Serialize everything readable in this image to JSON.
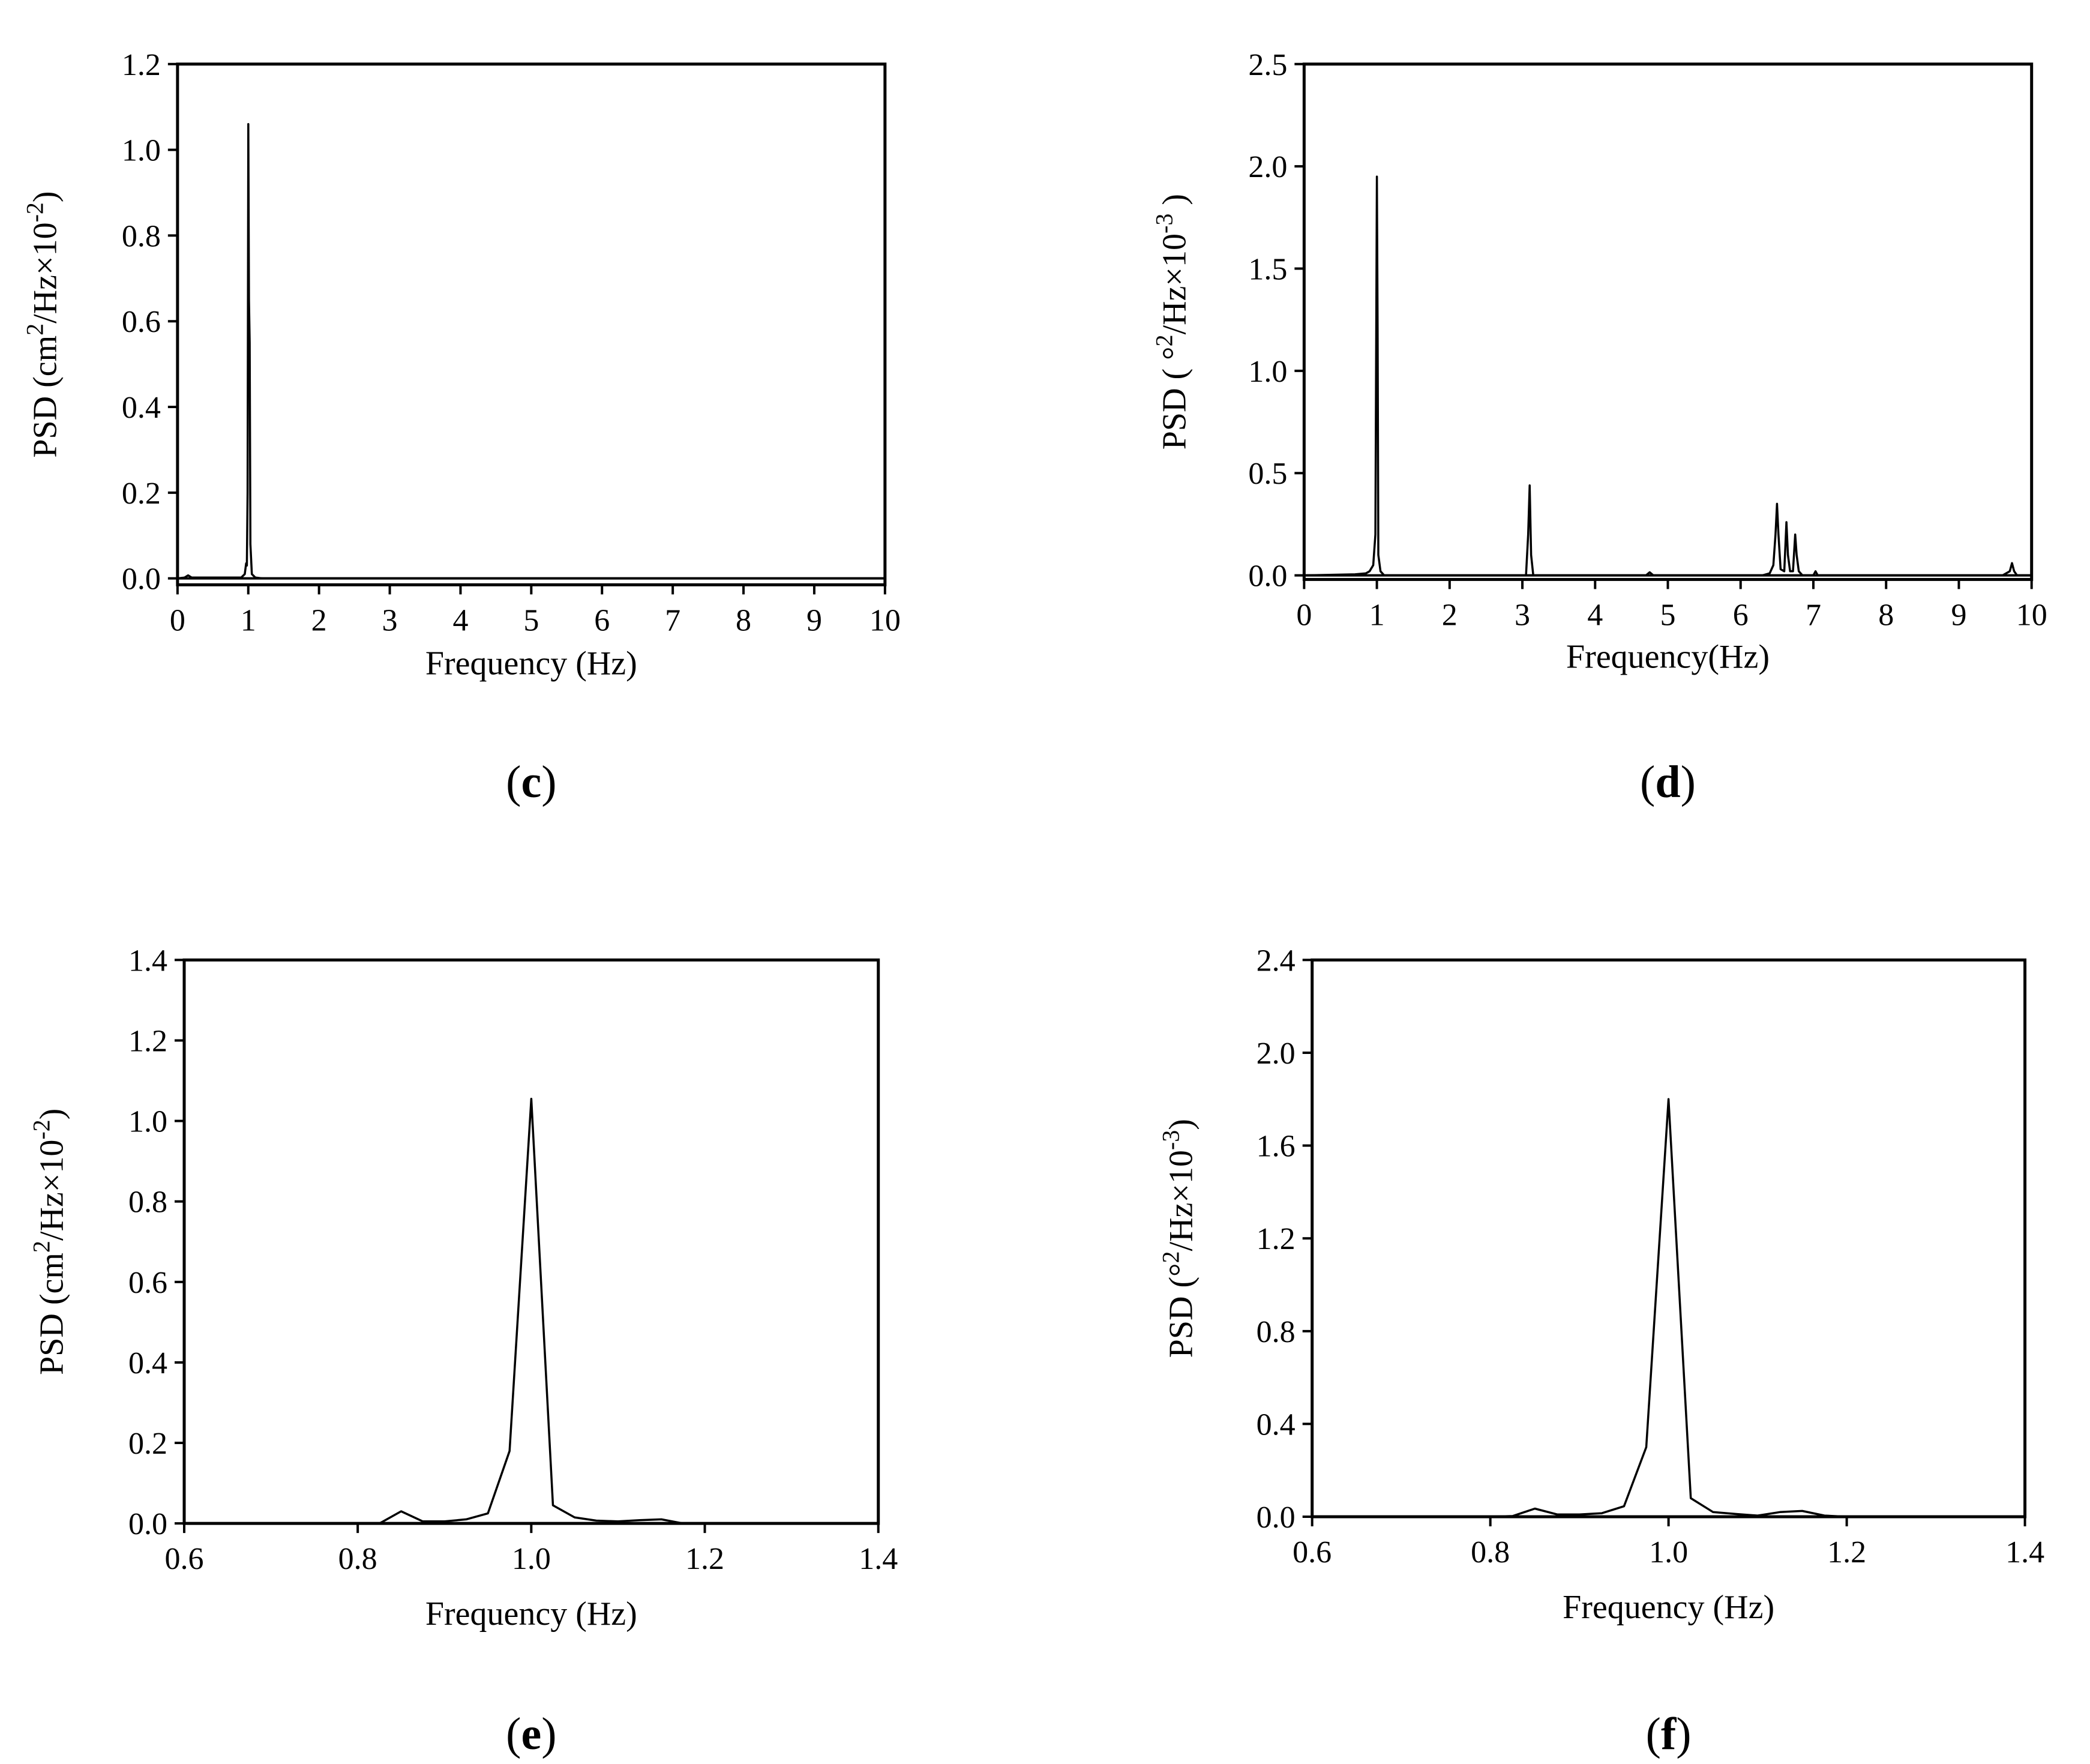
{
  "chart_data": [
    {
      "id": "c",
      "type": "line",
      "panel_label": "c",
      "xlabel": "Frequency (Hz)",
      "ylabel": {
        "pre": "PSD (cm",
        "sup1": "2",
        "mid": "/Hz×10",
        "sup2": "-2",
        "post": ")"
      },
      "xlim": [
        0,
        10
      ],
      "ylim": [
        -0.015,
        1.2
      ],
      "xticks": [
        0,
        1,
        2,
        3,
        4,
        5,
        6,
        7,
        8,
        9,
        10
      ],
      "xtick_labels": [
        "0",
        "1",
        "2",
        "3",
        "4",
        "5",
        "6",
        "7",
        "8",
        "9",
        "10"
      ],
      "yticks": [
        0.0,
        0.2,
        0.4,
        0.6,
        0.8,
        1.0,
        1.2
      ],
      "ytick_labels": [
        "0.0",
        "0.2",
        "0.4",
        "0.6",
        "0.8",
        "1.0",
        "1.2"
      ],
      "series": [
        {
          "x": [
            0.0,
            0.1,
            0.15,
            0.2,
            0.9,
            0.95,
            0.97,
            0.98,
            0.99,
            1.0,
            1.01,
            1.02,
            1.03,
            1.05,
            1.1,
            1.2,
            10.0
          ],
          "y": [
            0.0,
            0.002,
            0.007,
            0.002,
            0.002,
            0.01,
            0.035,
            0.03,
            0.2,
            1.06,
            0.65,
            0.55,
            0.08,
            0.01,
            0.002,
            0.0,
            0.0
          ]
        }
      ]
    },
    {
      "id": "d",
      "type": "line",
      "panel_label": "d",
      "xlabel": "Frequency(Hz)",
      "ylabel": {
        "pre": "PSD ( °",
        "sup1": "2",
        "mid": "/Hz×10",
        "sup2": "-3",
        "post": " )"
      },
      "xlim": [
        0,
        10
      ],
      "ylim": [
        -0.02,
        2.5
      ],
      "xticks": [
        0,
        1,
        2,
        3,
        4,
        5,
        6,
        7,
        8,
        9,
        10
      ],
      "xtick_labels": [
        "0",
        "1",
        "2",
        "3",
        "4",
        "5",
        "6",
        "7",
        "8",
        "9",
        "10"
      ],
      "yticks": [
        0.0,
        0.5,
        1.0,
        1.5,
        2.0,
        2.5
      ],
      "ytick_labels": [
        "0.0",
        "0.5",
        "1.0",
        "1.5",
        "2.0",
        "2.5"
      ],
      "series": [
        {
          "x": [
            0.0,
            0.7,
            0.85,
            0.9,
            0.95,
            0.98,
            1.0,
            1.01,
            1.02,
            1.05,
            1.1,
            3.05,
            3.08,
            3.1,
            3.12,
            3.15,
            4.7,
            4.75,
            4.8,
            6.3,
            6.4,
            6.45,
            6.48,
            6.5,
            6.52,
            6.55,
            6.6,
            6.63,
            6.65,
            6.68,
            6.72,
            6.75,
            6.77,
            6.8,
            6.85,
            7.0,
            7.03,
            7.06,
            9.6,
            9.7,
            9.73,
            9.76,
            9.8,
            10.0
          ],
          "y": [
            0.0,
            0.005,
            0.01,
            0.02,
            0.05,
            0.2,
            1.95,
            1.2,
            0.1,
            0.02,
            0.0,
            0.0,
            0.2,
            0.44,
            0.1,
            0.0,
            0.0,
            0.015,
            0.0,
            0.0,
            0.01,
            0.05,
            0.2,
            0.35,
            0.2,
            0.03,
            0.02,
            0.26,
            0.1,
            0.02,
            0.02,
            0.2,
            0.1,
            0.02,
            0.0,
            0.0,
            0.02,
            0.0,
            0.0,
            0.02,
            0.06,
            0.02,
            0.0,
            0.0
          ]
        }
      ]
    },
    {
      "id": "e",
      "type": "line",
      "panel_label": "e",
      "xlabel": "Frequency (Hz)",
      "ylabel": {
        "pre": "PSD (cm",
        "sup1": "2",
        "mid": "/Hz×10",
        "sup2": "-2",
        "post": ")"
      },
      "xlim": [
        0.6,
        1.4
      ],
      "ylim": [
        0,
        1.4
      ],
      "xticks": [
        0.6,
        0.8,
        1.0,
        1.2,
        1.4
      ],
      "xtick_labels": [
        "0.6",
        "0.8",
        "1.0",
        "1.2",
        "1.4"
      ],
      "yticks": [
        0.0,
        0.2,
        0.4,
        0.6,
        0.8,
        1.0,
        1.2,
        1.4
      ],
      "ytick_labels": [
        "0.0",
        "0.2",
        "0.4",
        "0.6",
        "0.8",
        "1.0",
        "1.2",
        "1.4"
      ],
      "series": [
        {
          "x": [
            0.6,
            0.825,
            0.85,
            0.875,
            0.9,
            0.925,
            0.95,
            0.975,
            1.0,
            1.025,
            1.05,
            1.075,
            1.1,
            1.125,
            1.15,
            1.175,
            1.2,
            1.4
          ],
          "y": [
            0.0,
            0.0,
            0.03,
            0.005,
            0.005,
            0.01,
            0.025,
            0.18,
            1.055,
            0.045,
            0.015,
            0.007,
            0.005,
            0.008,
            0.01,
            0.0,
            0.0,
            0.0
          ]
        }
      ]
    },
    {
      "id": "f",
      "type": "line",
      "panel_label": "f",
      "xlabel": "Frequency (Hz)",
      "ylabel": {
        "pre": "PSD (°",
        "sup1": "2",
        "mid": "/Hz×10",
        "sup2": "-3",
        "post": ")"
      },
      "xlim": [
        0.6,
        1.4
      ],
      "ylim": [
        0,
        2.4
      ],
      "xticks": [
        0.6,
        0.8,
        1.0,
        1.2,
        1.4
      ],
      "xtick_labels": [
        "0.6",
        "0.8",
        "1.0",
        "1.2",
        "1.4"
      ],
      "yticks": [
        0.0,
        0.4,
        0.8,
        1.2,
        1.6,
        2.0,
        2.4
      ],
      "ytick_labels": [
        "0.0",
        "0.4",
        "0.8",
        "1.2",
        "1.6",
        "2.0",
        "2.4"
      ],
      "series": [
        {
          "x": [
            0.6,
            0.8,
            0.825,
            0.85,
            0.875,
            0.9,
            0.925,
            0.95,
            0.975,
            1.0,
            1.025,
            1.05,
            1.075,
            1.1,
            1.125,
            1.15,
            1.175,
            1.2,
            1.4
          ],
          "y": [
            0.0,
            0.0,
            0.003,
            0.035,
            0.01,
            0.01,
            0.015,
            0.045,
            0.3,
            1.8,
            0.08,
            0.02,
            0.012,
            0.005,
            0.02,
            0.025,
            0.005,
            0.0,
            0.0
          ]
        }
      ]
    }
  ]
}
